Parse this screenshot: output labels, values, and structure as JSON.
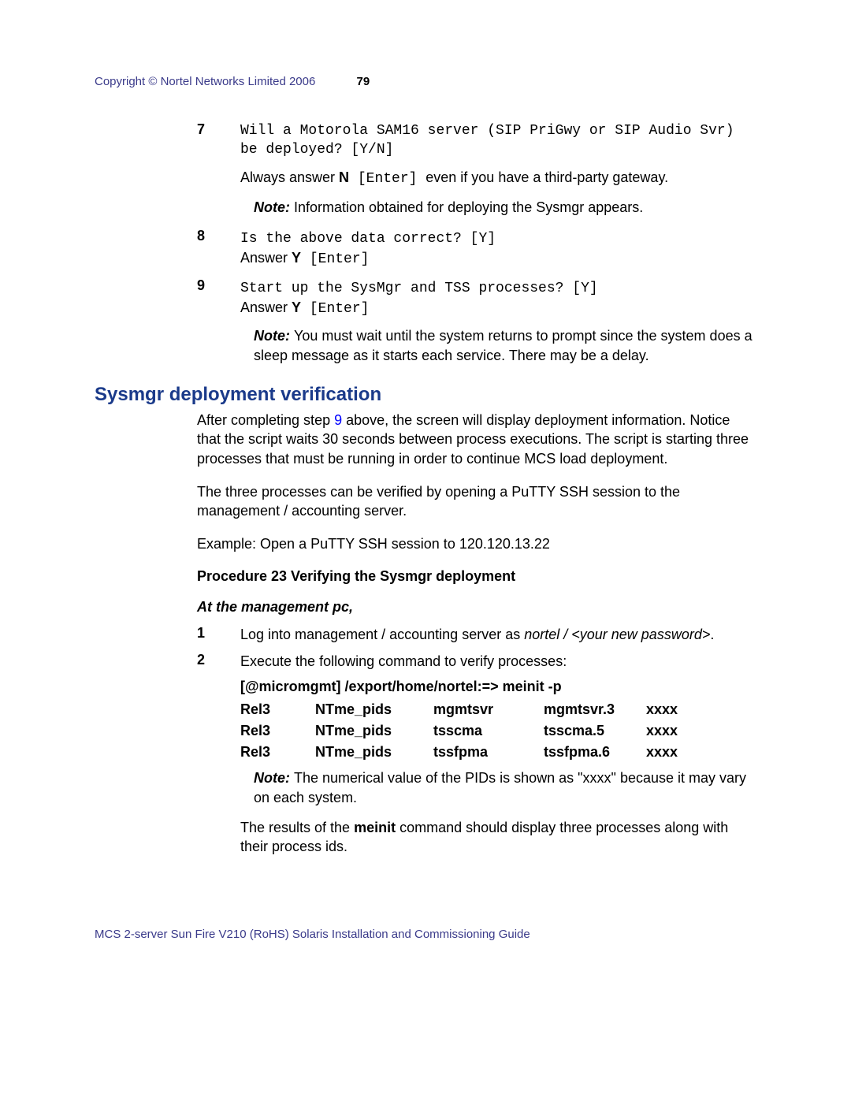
{
  "header": {
    "copyright": "Copyright © Nortel Networks Limited 2006",
    "page_number": "79"
  },
  "steps_a": [
    {
      "num": "7",
      "prompt": "Will a Motorola SAM16 server (SIP PriGwy or SIP Audio Svr) be deployed?   [Y/N]",
      "instr_pre": "Always answer ",
      "instr_bold": "N",
      "instr_mono": " [Enter] ",
      "instr_post": "even if you have a third-party gateway.",
      "note": "Information obtained for deploying the Sysmgr appears."
    },
    {
      "num": "8",
      "prompt": "Is the above data correct? [Y]",
      "instr_pre": "Answer ",
      "instr_bold": "Y",
      "instr_mono": " [Enter]",
      "instr_post": ""
    },
    {
      "num": "9",
      "prompt": "Start up the SysMgr and TSS processes? [Y]",
      "instr_pre": "Answer ",
      "instr_bold": "Y",
      "instr_mono": " [Enter]",
      "instr_post": "",
      "note": "You must wait until the system returns to prompt since the system does a sleep message as it starts each service. There may be a delay."
    }
  ],
  "section": {
    "heading": "Sysmgr deployment verification",
    "para1_a": "After completing step ",
    "para1_link": "9",
    "para1_b": " above, the screen will display deployment information. Notice that the script waits 30 seconds between process executions. The script is starting three processes that must be running in order to continue MCS load deployment.",
    "para2": "The three processes can be verified by opening a PuTTY SSH session to the management / accounting server.",
    "para3": "Example: Open a PuTTY SSH session to 120.120.13.22"
  },
  "procedure": {
    "title": "Procedure 23  Verifying the Sysmgr deployment",
    "subtitle": "At the management pc,",
    "step1": {
      "num": "1",
      "text_a": "Log into management / accounting server as ",
      "text_i": "nortel / <your new password>",
      "text_b": "."
    },
    "step2": {
      "num": "2",
      "text": "Execute the following command to verify processes:",
      "cmd": "[@micromgmt] /export/home/nortel:=> meinit -p",
      "table": {
        "rows": [
          {
            "c1": "Rel3",
            "c2": "NTme_pids",
            "c3": "mgmtsvr",
            "c4": "mgmtsvr.3",
            "c5": "xxxx"
          },
          {
            "c1": "Rel3",
            "c2": "NTme_pids",
            "c3": "tsscma",
            "c4": "tsscma.5",
            "c5": "xxxx"
          },
          {
            "c1": "Rel3",
            "c2": "NTme_pids",
            "c3": "tssfpma",
            "c4": "tssfpma.6",
            "c5": "xxxx"
          }
        ]
      },
      "note": "The numerical value of the PIDs is shown as \"xxxx\" because it may vary on each system.",
      "result_a": "The results of the ",
      "result_bold": "meinit",
      "result_b": " command should display three processes along with their process ids."
    }
  },
  "footer": "MCS 2-server Sun Fire V210 (RoHS) Solaris Installation and Commissioning Guide"
}
